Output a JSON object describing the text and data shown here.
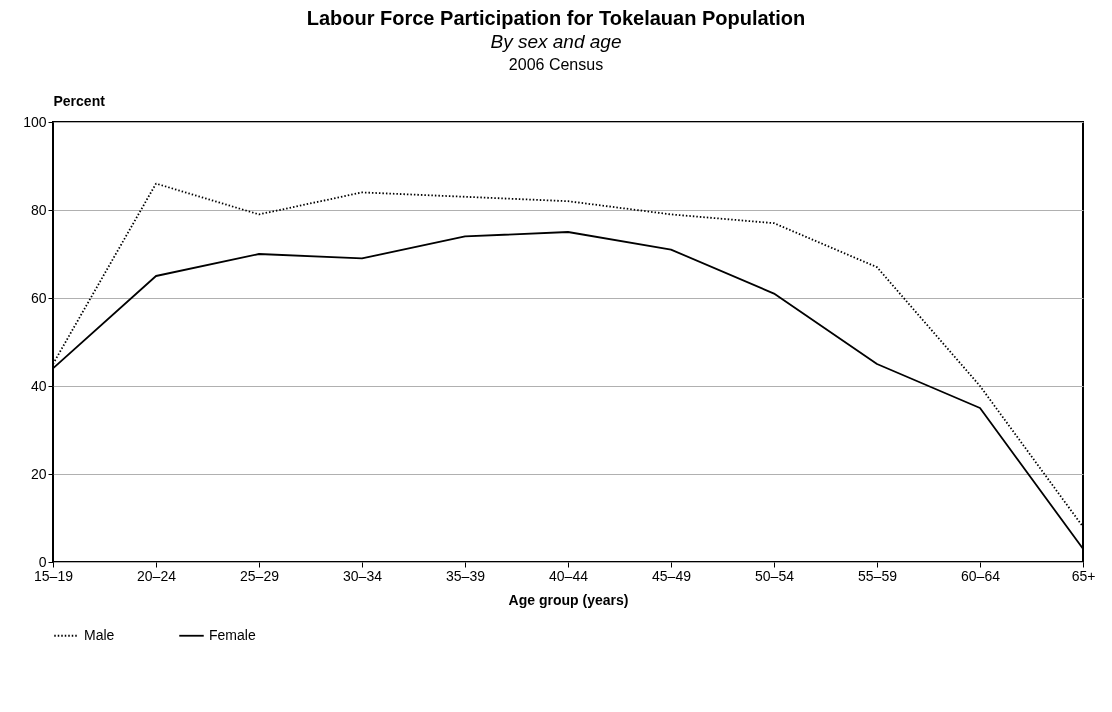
{
  "chart_data": {
    "type": "line",
    "title": "Labour Force Participation for Tokelauan Population",
    "subtitle": "By sex and age",
    "annotations": [
      "2006 Census"
    ],
    "xlabel": "Age group (years)",
    "ylabel": "Percent",
    "categories": [
      "15–19",
      "20–24",
      "25–29",
      "30–34",
      "35–39",
      "40–44",
      "45–49",
      "50–54",
      "55–59",
      "60–64",
      "65+"
    ],
    "series": [
      {
        "name": "Male",
        "color": "#000000",
        "line_style": "dotted",
        "values": [
          45,
          86,
          79,
          84,
          83,
          82,
          79,
          77,
          67,
          40,
          8
        ]
      },
      {
        "name": "Female",
        "color": "#000000",
        "line_style": "solid",
        "values": [
          44,
          65,
          70,
          69,
          74,
          75,
          71,
          61,
          45,
          35,
          3
        ]
      }
    ],
    "ylim": [
      0,
      100
    ],
    "yticks": [
      0,
      20,
      40,
      60,
      80,
      100
    ],
    "grid": "y",
    "legend": "bottom left"
  }
}
